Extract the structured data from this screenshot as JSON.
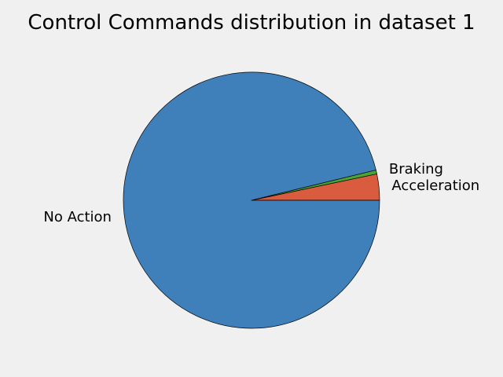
{
  "chart_data": {
    "type": "pie",
    "title": "Control Commands distribution in dataset 1",
    "slices": [
      {
        "label": "Acceleration",
        "value": 3.3,
        "color": "#d95c3f"
      },
      {
        "label": "Braking",
        "value": 0.5,
        "color": "#4aa532"
      },
      {
        "label": "No Action",
        "value": 96.2,
        "color": "#3f7fba"
      }
    ],
    "start_angle_deg": 0,
    "direction": "counterclockwise",
    "edge_color": "#000000"
  }
}
